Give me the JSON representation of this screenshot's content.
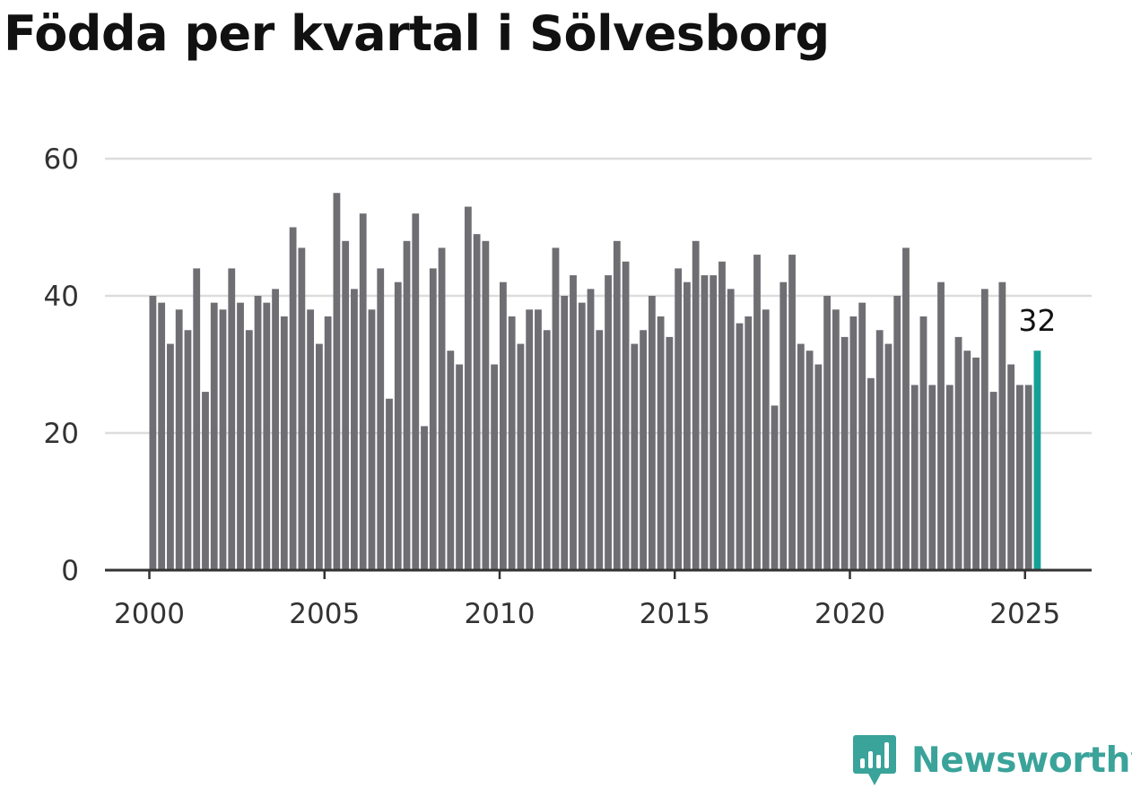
{
  "title": "Födda per kvartal i Sölvesborg",
  "brand": {
    "name": "Newsworthy",
    "color": "#3aa39a",
    "icon": "newsworthy-logo-icon"
  },
  "colors": {
    "bar": "#6f6e73",
    "highlight": "#16a095",
    "grid": "#dddddd",
    "axis": "#333333"
  },
  "chart_data": {
    "type": "bar",
    "title": "Födda per kvartal i Sölvesborg",
    "xlabel": "",
    "ylabel": "",
    "ylim": [
      0,
      60
    ],
    "yticks": [
      0,
      20,
      40,
      60
    ],
    "xticks": [
      "2000",
      "2005",
      "2010",
      "2015",
      "2020",
      "2025"
    ],
    "grid": true,
    "start": "2000 Q1",
    "end": "2025 Q2",
    "values": [
      40,
      39,
      33,
      38,
      35,
      44,
      26,
      39,
      38,
      44,
      39,
      35,
      40,
      39,
      41,
      37,
      50,
      47,
      38,
      33,
      37,
      55,
      48,
      41,
      52,
      38,
      44,
      25,
      42,
      48,
      52,
      21,
      44,
      47,
      32,
      30,
      53,
      49,
      48,
      30,
      42,
      37,
      33,
      38,
      38,
      35,
      47,
      40,
      43,
      39,
      41,
      35,
      43,
      48,
      45,
      33,
      35,
      40,
      37,
      34,
      44,
      42,
      48,
      43,
      43,
      45,
      41,
      36,
      37,
      46,
      38,
      24,
      42,
      46,
      33,
      32,
      30,
      40,
      38,
      34,
      37,
      39,
      28,
      35,
      33,
      40,
      47,
      27,
      37,
      27,
      42,
      27,
      34,
      32,
      31,
      41,
      26,
      42,
      30,
      27,
      27,
      32
    ],
    "highlight_last": true,
    "last_value_label": "32"
  }
}
